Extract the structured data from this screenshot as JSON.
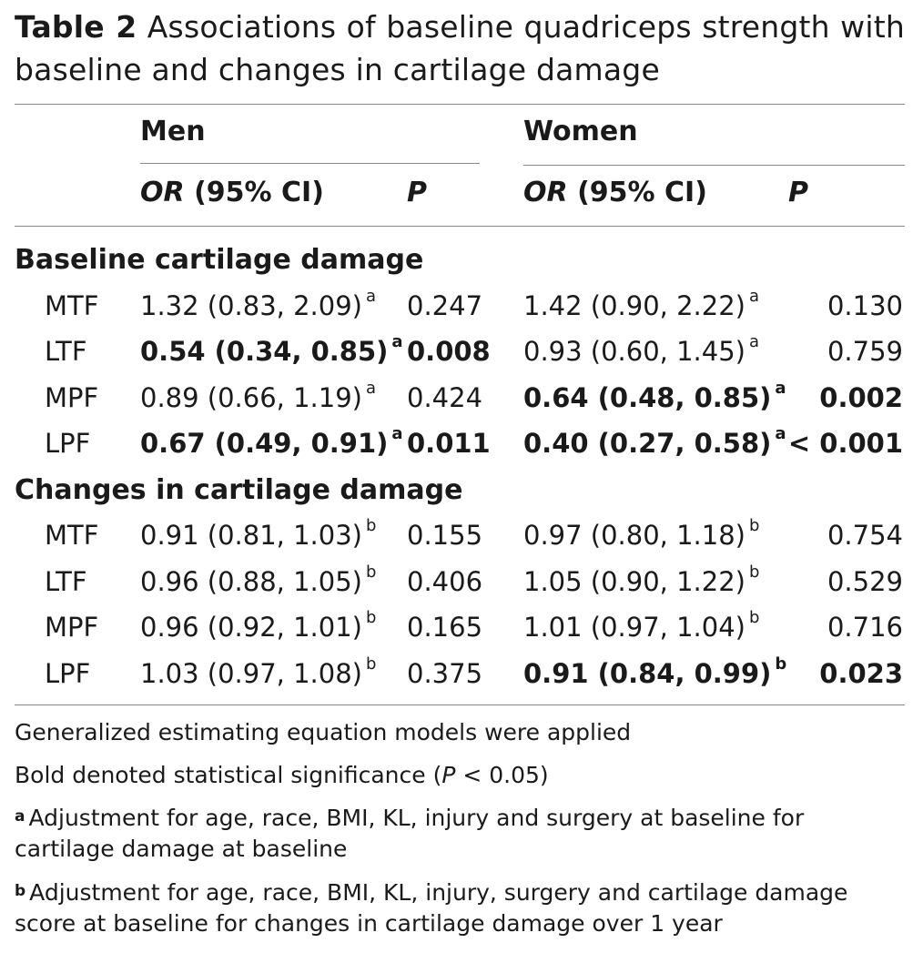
{
  "caption": {
    "label": "Table 2",
    "text": "Associations of baseline quadriceps strength with baseline and changes in cartilage damage"
  },
  "header": {
    "men": "Men",
    "women": "Women",
    "or_italic": "OR",
    "or_rest": "(95% CI)",
    "p": "P"
  },
  "sections": [
    {
      "title": "Baseline cartilage damage",
      "rows": [
        {
          "name": "MTF",
          "men_or": "1.32 (0.83, 2.09)",
          "men_sup": "a",
          "men_p": "0.247",
          "women_or": "1.42 (0.90, 2.22)",
          "women_sup": "a",
          "women_p": "0.130"
        },
        {
          "name": "LTF",
          "men_or": "0.54 (0.34, 0.85)",
          "men_sup": "a",
          "men_p": "0.008",
          "women_or": "0.93 (0.60, 1.45)",
          "women_sup": "a",
          "women_p": "0.759"
        },
        {
          "name": "MPF",
          "men_or": "0.89 (0.66, 1.19)",
          "men_sup": "a",
          "men_p": "0.424",
          "women_or": "0.64 (0.48, 0.85)",
          "women_sup": "a",
          "women_p": "0.002"
        },
        {
          "name": "LPF",
          "men_or": "0.67 (0.49, 0.91)",
          "men_sup": "a",
          "men_p": "0.011",
          "women_or": "0.40 (0.27, 0.58)",
          "women_sup": "a",
          "women_p": "< 0.001"
        }
      ]
    },
    {
      "title": "Changes in cartilage damage",
      "rows": [
        {
          "name": "MTF",
          "men_or": "0.91 (0.81, 1.03)",
          "men_sup": "b",
          "men_p": "0.155",
          "women_or": "0.97 (0.80, 1.18)",
          "women_sup": "b",
          "women_p": "0.754"
        },
        {
          "name": "LTF",
          "men_or": "0.96 (0.88, 1.05)",
          "men_sup": "b",
          "men_p": "0.406",
          "women_or": "1.05 (0.90, 1.22)",
          "women_sup": "b",
          "women_p": "0.529"
        },
        {
          "name": "MPF",
          "men_or": "0.96 (0.92, 1.01)",
          "men_sup": "b",
          "men_p": "0.165",
          "women_or": "1.01 (0.97, 1.04)",
          "women_sup": "b",
          "women_p": "0.716"
        },
        {
          "name": "LPF",
          "men_or": "1.03 (0.97, 1.08)",
          "men_sup": "b",
          "men_p": "0.375",
          "women_or": "0.91 (0.84, 0.99)",
          "women_sup": "b",
          "women_p": "0.023"
        }
      ]
    }
  ],
  "notes": {
    "gee": "Generalized estimating equation models were applied",
    "bold_pre": "Bold denoted statistical significance (",
    "bold_p": "P",
    "bold_post": " < 0.05)",
    "a_mark": "a",
    "a_text": "Adjustment for age, race, BMI, KL, injury and surgery at baseline for cartilage damage at baseline",
    "b_mark": "b",
    "b_text": "Adjustment for age, race, BMI, KL, injury, surgery and cartilage damage score at baseline for changes in cartilage damage over 1 year"
  }
}
